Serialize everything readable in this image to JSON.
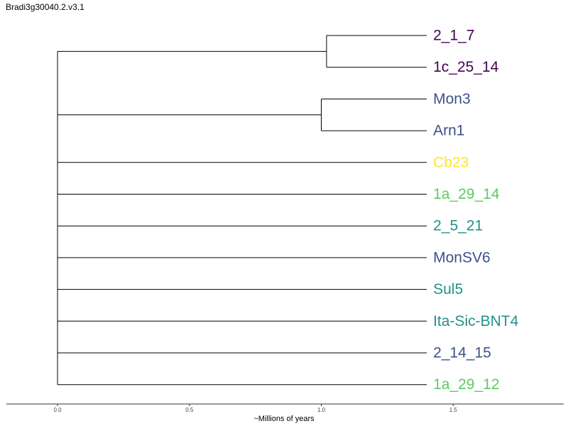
{
  "title": "Bradi3g30040.2.v3.1",
  "axis": {
    "xlabel": "~Millions of years",
    "ticks": [
      0.0,
      0.5,
      1.0,
      1.5
    ],
    "tick_labels": [
      "0.0",
      "0.5",
      "1.0",
      "1.5"
    ]
  },
  "tree": {
    "tips": [
      {
        "label": "2_1_7",
        "color": "#440154"
      },
      {
        "label": "1c_25_14",
        "color": "#440154"
      },
      {
        "label": "Mon3",
        "color": "#3b528b"
      },
      {
        "label": "Arn1",
        "color": "#3b528b"
      },
      {
        "label": "Cb23",
        "color": "#fde725"
      },
      {
        "label": "1a_29_14",
        "color": "#5ec962"
      },
      {
        "label": "2_5_21",
        "color": "#21918c"
      },
      {
        "label": "MonSV6",
        "color": "#3b528b"
      },
      {
        "label": "Sul5",
        "color": "#21918c"
      },
      {
        "label": "Ita-Sic-BNT4",
        "color": "#21918c"
      },
      {
        "label": "2_14_15",
        "color": "#3b528b"
      },
      {
        "label": "1a_29_12",
        "color": "#5ec962"
      }
    ],
    "clades": [
      {
        "tips": [
          0,
          1
        ],
        "node_age": 1.02
      },
      {
        "tips": [
          2,
          3
        ],
        "node_age": 1.0
      }
    ],
    "tip_age": 1.4,
    "root_age": 0.0
  }
}
